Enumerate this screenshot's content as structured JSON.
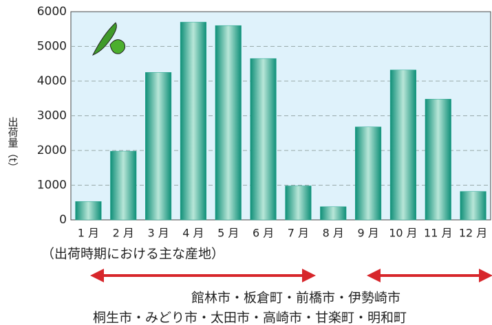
{
  "chart_data": {
    "type": "bar",
    "y_label": "出荷量（t）",
    "categories": [
      "1 月",
      "2 月",
      "3 月",
      "4 月",
      "5 月",
      "6 月",
      "7 月",
      "8 月",
      "9 月",
      "10 月",
      "11 月",
      "12 月"
    ],
    "values": [
      530,
      1980,
      4250,
      5700,
      5600,
      4650,
      980,
      380,
      2680,
      4320,
      3480,
      820
    ],
    "color": "#1fa58c",
    "ylim": [
      0,
      6000
    ],
    "yticks": [
      0,
      1000,
      2000,
      3000,
      4000,
      5000,
      6000
    ],
    "grid": true,
    "annotations": [
      "（出荷時期における主な産地）",
      "館林市・板倉町・前橋市・伊勢崎市",
      "桐生市・みどり市・太田市・高崎市・甘楽町・明和町"
    ]
  }
}
